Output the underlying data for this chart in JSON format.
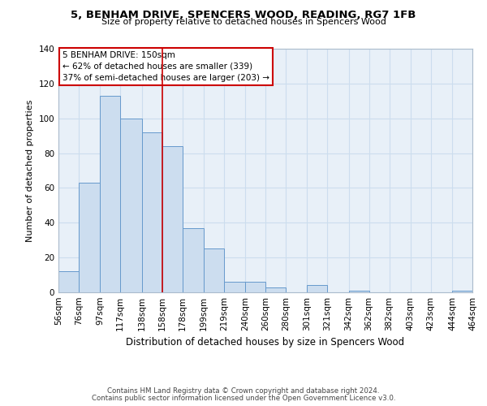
{
  "title": "5, BENHAM DRIVE, SPENCERS WOOD, READING, RG7 1FB",
  "subtitle": "Size of property relative to detached houses in Spencers Wood",
  "xlabel": "Distribution of detached houses by size in Spencers Wood",
  "ylabel": "Number of detached properties",
  "bar_color": "#ccddef",
  "bar_edge_color": "#6699cc",
  "bin_labels": [
    "56sqm",
    "76sqm",
    "97sqm",
    "117sqm",
    "138sqm",
    "158sqm",
    "178sqm",
    "199sqm",
    "219sqm",
    "240sqm",
    "260sqm",
    "280sqm",
    "301sqm",
    "321sqm",
    "342sqm",
    "362sqm",
    "382sqm",
    "403sqm",
    "423sqm",
    "444sqm",
    "464sqm"
  ],
  "bar_heights": [
    12,
    63,
    113,
    100,
    92,
    84,
    37,
    25,
    6,
    6,
    3,
    0,
    4,
    0,
    1,
    0,
    0,
    0,
    0,
    1
  ],
  "ylim": [
    0,
    140
  ],
  "yticks": [
    0,
    20,
    40,
    60,
    80,
    100,
    120,
    140
  ],
  "vline_x": 158,
  "vline_color": "#cc0000",
  "annotation_title": "5 BENHAM DRIVE: 150sqm",
  "annotation_line1": "← 62% of detached houses are smaller (339)",
  "annotation_line2": "37% of semi-detached houses are larger (203) →",
  "footer_line1": "Contains HM Land Registry data © Crown copyright and database right 2024.",
  "footer_line2": "Contains public sector information licensed under the Open Government Licence v3.0.",
  "background_color": "#ffffff",
  "grid_color": "#ccddee",
  "plot_bg_color": "#e8f0f8"
}
